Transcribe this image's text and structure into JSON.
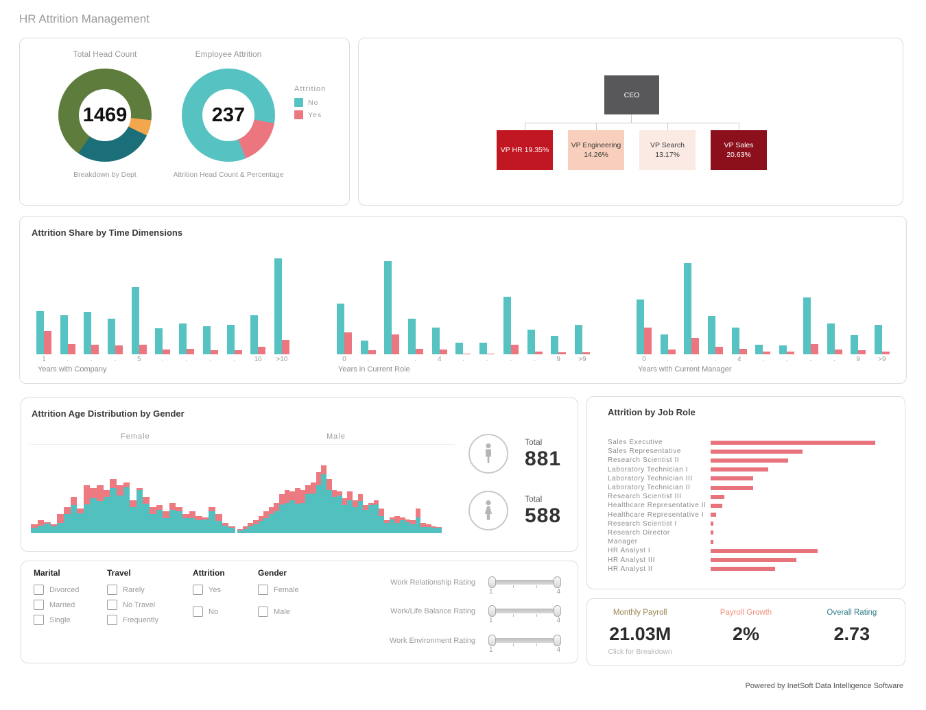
{
  "page_title": "HR Attrition Management",
  "footer": "Powered by InetSoft Data Intelligence Software",
  "colors": {
    "teal": "#57c2c2",
    "pink": "#ec7680",
    "olive": "#5e7d3c",
    "dark_teal": "#1b6f79",
    "orange": "#f2a74f"
  },
  "headcount_panel": {
    "legend": {
      "title": "Attrition",
      "items": [
        {
          "label": "No",
          "color": "#57c2c2"
        },
        {
          "label": "Yes",
          "color": "#ec7680"
        }
      ]
    }
  },
  "org_chart": {
    "root": {
      "label": "CEO",
      "bg": "#58585b",
      "fg": "#ffffff"
    },
    "children": [
      {
        "line1": "VP HR 19.35%",
        "line2": "",
        "bg": "#c01722",
        "fg": "#ffffff"
      },
      {
        "line1": "VP Engineering",
        "line2": "14.26%",
        "bg": "#f8cfbc",
        "fg": "#3a3a3a"
      },
      {
        "line1": "VP Search",
        "line2": "13.17%",
        "bg": "#faeae3",
        "fg": "#3a3a3a"
      },
      {
        "line1": "VP Sales",
        "line2": "20.63%",
        "bg": "#8c0f1c",
        "fg": "#ffffff"
      }
    ]
  },
  "age_panel": {
    "totals": [
      {
        "gender": "male",
        "label": "Total",
        "value": "881"
      },
      {
        "gender": "female",
        "label": "Total",
        "value": "588"
      }
    ]
  },
  "filters": {
    "groups": [
      {
        "title": "Marital",
        "options": [
          "Divorced",
          "Married",
          "Single"
        ],
        "spread": false
      },
      {
        "title": "Travel",
        "options": [
          "Rarely",
          "No Travel",
          "Frequently"
        ],
        "spread": false
      },
      {
        "title": "Attrition",
        "options": [
          "Yes",
          "No"
        ],
        "spread": true
      },
      {
        "title": "Gender",
        "options": [
          "Female",
          "Male"
        ],
        "spread": true
      }
    ],
    "sliders": [
      {
        "label": "Work Relationship Rating",
        "min": "1",
        "max": "4"
      },
      {
        "label": "Work/Life Balance Rating",
        "min": "1",
        "max": "4"
      },
      {
        "label": "Work Environment Rating",
        "min": "1",
        "max": "4"
      }
    ]
  },
  "kpis": [
    {
      "label": "Monthly Payroll",
      "value": "21.03M",
      "sub": "Click for Breakdown",
      "label_color": "#96854f",
      "clickable": true
    },
    {
      "label": "Payroll Growth",
      "value": "2%",
      "sub": "",
      "label_color": "#f0907c",
      "clickable": false
    },
    {
      "label": "Overall Rating",
      "value": "2.73",
      "sub": "",
      "label_color": "#2e7d8a",
      "clickable": false
    }
  ],
  "chart_data": [
    {
      "id": "headcount_donut",
      "type": "pie",
      "title": "Total Head Count",
      "center_label": "1469",
      "caption": "Breakdown by Dept",
      "units": "percent of ring",
      "from_deg": 215,
      "slices": [
        {
          "label": "dept-green",
          "value": 67,
          "color": "#5e7d3c"
        },
        {
          "label": "dept-orange",
          "value": 5.5,
          "color": "#f2a74f"
        },
        {
          "label": "dept-darkteal",
          "value": 27.5,
          "color": "#1b6f79"
        }
      ]
    },
    {
      "id": "attrition_donut",
      "type": "pie",
      "title": "Employee Attrition",
      "center_label": "237",
      "caption": "Attrition Head Count & Percentage",
      "units": "percent of ring",
      "from_deg": 158,
      "slices": [
        {
          "label": "No",
          "value": 83.9,
          "color": "#57c2c2"
        },
        {
          "label": "Yes",
          "value": 16.1,
          "color": "#ec7680"
        }
      ]
    },
    {
      "id": "time_dimensions",
      "type": "bar",
      "title": "Attrition Share by Time Dimensions",
      "units": "relative bar height, % of tallest bar",
      "legend": [
        "No",
        "Yes"
      ],
      "groups": [
        {
          "xlabel": "Years with Company",
          "categories": [
            "1",
            ".",
            ".",
            ".",
            "5",
            ".",
            ".",
            ".",
            ".",
            "10",
            ">10"
          ],
          "series": [
            {
              "name": "No",
              "color": "#57c2c2",
              "values": [
                45,
                41,
                44,
                37,
                70,
                27,
                32,
                29,
                31,
                41,
                100
              ]
            },
            {
              "name": "Yes",
              "color": "#ec7680",
              "values": [
                24,
                11,
                10,
                9,
                10,
                5,
                6,
                4,
                4,
                8,
                15
              ]
            }
          ]
        },
        {
          "xlabel": "Years in Current Role",
          "categories": [
            "0",
            ".",
            ".",
            ".",
            "4",
            ".",
            ".",
            ".",
            ".",
            "9",
            ">9"
          ],
          "series": [
            {
              "name": "No",
              "color": "#57c2c2",
              "values": [
                53,
                14,
                97,
                37,
                28,
                12,
                12,
                60,
                26,
                19,
                31
              ]
            },
            {
              "name": "Yes",
              "color": "#ec7680",
              "values": [
                23,
                4,
                21,
                6,
                5,
                1,
                1,
                10,
                3,
                2,
                2
              ]
            }
          ]
        },
        {
          "xlabel": "Years with Current Manager",
          "categories": [
            "0",
            ".",
            ".",
            ".",
            "4",
            ".",
            ".",
            ".",
            ".",
            "9",
            ">9"
          ],
          "series": [
            {
              "name": "No",
              "color": "#57c2c2",
              "values": [
                57,
                21,
                95,
                40,
                28,
                10,
                9,
                59,
                32,
                20,
                31
              ]
            },
            {
              "name": "Yes",
              "color": "#ec7680",
              "values": [
                28,
                5,
                17,
                8,
                6,
                3,
                3,
                11,
                5,
                4,
                3
              ]
            }
          ]
        }
      ]
    },
    {
      "id": "age_distribution",
      "type": "bar",
      "title": "Attrition Age Distribution by Gender",
      "units": "stacked histogram, relative height % of chart area; attrition (pink) stacked on top of stayers (teal)",
      "sections": [
        {
          "label": "Female",
          "total": 588,
          "bar_totals": [
            10,
            15,
            13,
            10,
            22,
            30,
            42,
            28,
            55,
            52,
            55,
            50,
            62,
            55,
            58,
            38,
            52,
            42,
            30,
            32,
            25,
            35,
            30,
            22,
            25,
            20,
            18,
            30,
            22,
            12,
            8
          ],
          "bar_attrition": [
            4,
            6,
            2,
            2,
            10,
            8,
            10,
            5,
            22,
            12,
            18,
            8,
            10,
            12,
            5,
            8,
            2,
            8,
            8,
            5,
            8,
            8,
            5,
            5,
            8,
            5,
            2,
            5,
            8,
            3,
            2
          ]
        },
        {
          "label": "Male",
          "total": 881,
          "bar_totals": [
            5,
            8,
            12,
            15,
            20,
            25,
            30,
            35,
            45,
            50,
            48,
            52,
            50,
            55,
            58,
            70,
            78,
            62,
            50,
            48,
            40,
            48,
            38,
            45,
            32,
            35,
            38,
            28,
            15,
            18,
            20,
            18,
            16,
            15,
            28,
            12,
            10,
            8,
            7
          ],
          "bar_attrition": [
            2,
            3,
            4,
            5,
            6,
            8,
            8,
            10,
            12,
            15,
            10,
            18,
            15,
            10,
            12,
            15,
            10,
            12,
            8,
            5,
            8,
            10,
            8,
            8,
            5,
            3,
            5,
            8,
            3,
            2,
            8,
            3,
            3,
            5,
            10,
            5,
            3,
            2,
            1
          ]
        }
      ]
    },
    {
      "id": "job_role",
      "type": "bar",
      "orientation": "horizontal",
      "title": "Attrition by Job Role",
      "units": "relative bar length, % of longest bar",
      "color": "#e8737c",
      "categories": [
        "Sales Executive",
        "Sales Representative",
        "Research Scientist II",
        "Laboratory Technician I",
        "Laboratory Technician III",
        "Laboratory Technician II",
        "Research Scientist III",
        "Healthcare Representative II",
        "Healthcare Representative I",
        "Research Scientist I",
        "Research Director",
        "Manager",
        "HR Analyst I",
        "HR Analyst III",
        "HR Analyst II"
      ],
      "values": [
        100,
        56,
        47,
        35,
        26,
        26,
        8.5,
        7,
        3.5,
        1.5,
        1.5,
        1.5,
        65,
        52,
        39
      ]
    }
  ]
}
